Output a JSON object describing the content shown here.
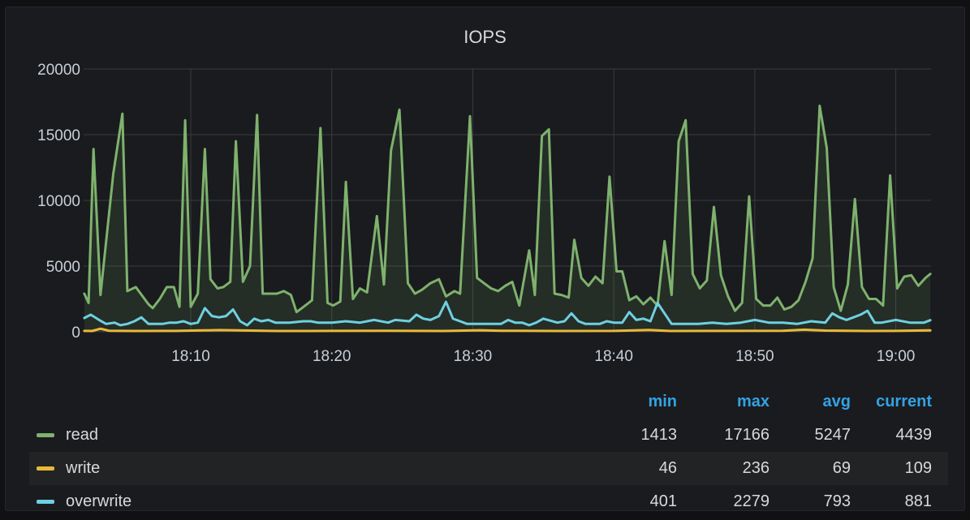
{
  "panel": {
    "title": "IOPS"
  },
  "chart_data": {
    "type": "line",
    "title": "IOPS",
    "xlabel": "",
    "ylabel": "",
    "ylim": [
      0,
      20000
    ],
    "yticks": [
      "0",
      "5000",
      "10000",
      "15000",
      "20000"
    ],
    "xticks": [
      {
        "t": 10,
        "label": "18:10"
      },
      {
        "t": 20,
        "label": "18:20"
      },
      {
        "t": 30,
        "label": "18:30"
      },
      {
        "t": 40,
        "label": "18:40"
      },
      {
        "t": 50,
        "label": "18:50"
      },
      {
        "t": 60,
        "label": "19:00"
      }
    ],
    "xlim": [
      2.4,
      62.5
    ],
    "grid": true,
    "legend_position": "bottom",
    "series": [
      {
        "name": "read",
        "color": "#7eb26d",
        "fill": true,
        "points": [
          [
            2.45,
            2900
          ],
          [
            2.75,
            2200
          ],
          [
            3.1,
            13900
          ],
          [
            3.6,
            2800
          ],
          [
            4.5,
            12000
          ],
          [
            5.15,
            16600
          ],
          [
            5.5,
            3100
          ],
          [
            6.1,
            3400
          ],
          [
            7.0,
            2100
          ],
          [
            7.3,
            1800
          ],
          [
            7.8,
            2500
          ],
          [
            8.3,
            3400
          ],
          [
            8.8,
            3400
          ],
          [
            9.2,
            1900
          ],
          [
            9.6,
            16100
          ],
          [
            10.0,
            1900
          ],
          [
            10.5,
            2900
          ],
          [
            11.0,
            13900
          ],
          [
            11.4,
            4000
          ],
          [
            11.9,
            3300
          ],
          [
            12.3,
            3400
          ],
          [
            12.8,
            3800
          ],
          [
            13.2,
            14500
          ],
          [
            13.7,
            3800
          ],
          [
            14.2,
            5000
          ],
          [
            14.7,
            16500
          ],
          [
            15.1,
            2900
          ],
          [
            15.6,
            2900
          ],
          [
            16.1,
            2900
          ],
          [
            16.6,
            3100
          ],
          [
            17.1,
            2800
          ],
          [
            17.5,
            1500
          ],
          [
            18.0,
            1900
          ],
          [
            18.6,
            2400
          ],
          [
            19.2,
            15500
          ],
          [
            19.7,
            2200
          ],
          [
            20.1,
            2000
          ],
          [
            20.6,
            2300
          ],
          [
            21.0,
            11400
          ],
          [
            21.5,
            2500
          ],
          [
            22.0,
            3300
          ],
          [
            22.5,
            3000
          ],
          [
            23.2,
            8800
          ],
          [
            23.7,
            3600
          ],
          [
            24.2,
            13800
          ],
          [
            24.8,
            16900
          ],
          [
            25.4,
            3700
          ],
          [
            25.9,
            2900
          ],
          [
            26.4,
            3200
          ],
          [
            27.0,
            3700
          ],
          [
            27.6,
            4000
          ],
          [
            28.1,
            2700
          ],
          [
            28.7,
            3100
          ],
          [
            29.1,
            2900
          ],
          [
            29.8,
            16400
          ],
          [
            30.3,
            4100
          ],
          [
            30.8,
            3700
          ],
          [
            31.3,
            3300
          ],
          [
            31.8,
            3100
          ],
          [
            32.3,
            3500
          ],
          [
            32.8,
            3800
          ],
          [
            33.3,
            2000
          ],
          [
            34.0,
            6200
          ],
          [
            34.4,
            2800
          ],
          [
            34.9,
            14900
          ],
          [
            35.4,
            15400
          ],
          [
            35.8,
            2900
          ],
          [
            36.3,
            2800
          ],
          [
            36.8,
            2600
          ],
          [
            37.2,
            7000
          ],
          [
            37.7,
            4100
          ],
          [
            38.2,
            3500
          ],
          [
            38.7,
            4200
          ],
          [
            39.2,
            3700
          ],
          [
            39.7,
            11800
          ],
          [
            40.2,
            4600
          ],
          [
            40.6,
            4600
          ],
          [
            41.1,
            2400
          ],
          [
            41.6,
            2700
          ],
          [
            42.1,
            2100
          ],
          [
            42.6,
            2600
          ],
          [
            43.1,
            2000
          ],
          [
            43.6,
            6900
          ],
          [
            44.1,
            2800
          ],
          [
            44.6,
            14500
          ],
          [
            45.1,
            16100
          ],
          [
            45.6,
            4400
          ],
          [
            46.1,
            3300
          ],
          [
            46.6,
            3900
          ],
          [
            47.1,
            9500
          ],
          [
            47.6,
            4300
          ],
          [
            48.1,
            2700
          ],
          [
            48.6,
            1600
          ],
          [
            49.1,
            2200
          ],
          [
            49.6,
            10300
          ],
          [
            50.1,
            2500
          ],
          [
            50.6,
            2000
          ],
          [
            51.1,
            2000
          ],
          [
            51.6,
            2600
          ],
          [
            52.1,
            1700
          ],
          [
            52.6,
            1900
          ],
          [
            53.1,
            2400
          ],
          [
            53.6,
            3800
          ],
          [
            54.1,
            5600
          ],
          [
            54.6,
            17200
          ],
          [
            55.1,
            14000
          ],
          [
            55.6,
            3400
          ],
          [
            56.1,
            1600
          ],
          [
            56.6,
            3600
          ],
          [
            57.1,
            10100
          ],
          [
            57.6,
            3400
          ],
          [
            58.1,
            2500
          ],
          [
            58.6,
            2500
          ],
          [
            59.1,
            2000
          ],
          [
            59.6,
            11900
          ],
          [
            60.1,
            3300
          ],
          [
            60.6,
            4200
          ],
          [
            61.1,
            4300
          ],
          [
            61.6,
            3500
          ],
          [
            62.1,
            4100
          ],
          [
            62.45,
            4400
          ]
        ]
      },
      {
        "name": "write",
        "color": "#eab839",
        "fill": false,
        "points": [
          [
            2.45,
            70
          ],
          [
            3.0,
            60
          ],
          [
            3.6,
            236
          ],
          [
            4.2,
            80
          ],
          [
            6.0,
            60
          ],
          [
            9.0,
            65
          ],
          [
            12.0,
            130
          ],
          [
            13.5,
            110
          ],
          [
            16.0,
            60
          ],
          [
            20.0,
            70
          ],
          [
            24.0,
            80
          ],
          [
            28.0,
            60
          ],
          [
            30.5,
            120
          ],
          [
            32.0,
            80
          ],
          [
            36.0,
            60
          ],
          [
            40.0,
            70
          ],
          [
            42.5,
            140
          ],
          [
            44.0,
            60
          ],
          [
            48.0,
            70
          ],
          [
            52.0,
            80
          ],
          [
            53.5,
            160
          ],
          [
            55.0,
            90
          ],
          [
            58.0,
            60
          ],
          [
            60.0,
            70
          ],
          [
            62.45,
            109
          ]
        ]
      },
      {
        "name": "overwrite",
        "color": "#6ed0e0",
        "fill": false,
        "points": [
          [
            2.45,
            1050
          ],
          [
            2.9,
            1300
          ],
          [
            3.5,
            900
          ],
          [
            4.0,
            600
          ],
          [
            4.6,
            700
          ],
          [
            5.0,
            500
          ],
          [
            5.5,
            600
          ],
          [
            6.0,
            800
          ],
          [
            6.5,
            1100
          ],
          [
            7.0,
            600
          ],
          [
            8.0,
            600
          ],
          [
            8.5,
            700
          ],
          [
            9.0,
            700
          ],
          [
            9.5,
            800
          ],
          [
            10.0,
            600
          ],
          [
            10.5,
            700
          ],
          [
            11.0,
            1800
          ],
          [
            11.5,
            1200
          ],
          [
            12.0,
            1100
          ],
          [
            12.5,
            1200
          ],
          [
            13.0,
            1700
          ],
          [
            13.5,
            800
          ],
          [
            14.0,
            500
          ],
          [
            14.5,
            1000
          ],
          [
            15.0,
            800
          ],
          [
            15.5,
            900
          ],
          [
            16.0,
            700
          ],
          [
            17.0,
            700
          ],
          [
            18.0,
            800
          ],
          [
            18.5,
            800
          ],
          [
            19.0,
            700
          ],
          [
            20.0,
            700
          ],
          [
            21.0,
            800
          ],
          [
            22.0,
            700
          ],
          [
            23.0,
            900
          ],
          [
            24.0,
            700
          ],
          [
            24.5,
            900
          ],
          [
            25.5,
            800
          ],
          [
            26.0,
            1300
          ],
          [
            26.5,
            1000
          ],
          [
            27.0,
            900
          ],
          [
            27.6,
            1200
          ],
          [
            28.1,
            2279
          ],
          [
            28.6,
            1000
          ],
          [
            29.1,
            800
          ],
          [
            29.6,
            600
          ],
          [
            30.1,
            600
          ],
          [
            31.0,
            600
          ],
          [
            32.0,
            600
          ],
          [
            32.5,
            900
          ],
          [
            33.0,
            700
          ],
          [
            33.5,
            700
          ],
          [
            34.0,
            500
          ],
          [
            34.5,
            700
          ],
          [
            35.0,
            1000
          ],
          [
            36.0,
            700
          ],
          [
            36.5,
            800
          ],
          [
            37.0,
            1400
          ],
          [
            37.5,
            800
          ],
          [
            38.0,
            600
          ],
          [
            39.0,
            600
          ],
          [
            39.5,
            800
          ],
          [
            40.0,
            700
          ],
          [
            40.6,
            700
          ],
          [
            41.1,
            1500
          ],
          [
            41.6,
            900
          ],
          [
            42.1,
            1000
          ],
          [
            42.6,
            800
          ],
          [
            43.1,
            2200
          ],
          [
            43.6,
            1400
          ],
          [
            44.1,
            600
          ],
          [
            45.0,
            600
          ],
          [
            46.0,
            600
          ],
          [
            47.0,
            700
          ],
          [
            48.0,
            600
          ],
          [
            49.0,
            700
          ],
          [
            50.0,
            900
          ],
          [
            51.0,
            700
          ],
          [
            52.0,
            700
          ],
          [
            53.0,
            600
          ],
          [
            54.0,
            800
          ],
          [
            55.0,
            700
          ],
          [
            55.5,
            1400
          ],
          [
            56.0,
            1100
          ],
          [
            56.5,
            900
          ],
          [
            57.0,
            1100
          ],
          [
            57.5,
            1300
          ],
          [
            58.0,
            1600
          ],
          [
            58.5,
            700
          ],
          [
            59.0,
            700
          ],
          [
            60.0,
            900
          ],
          [
            61.0,
            700
          ],
          [
            62.0,
            700
          ],
          [
            62.45,
            881
          ]
        ]
      }
    ]
  },
  "legend": {
    "headers": {
      "min": "min",
      "max": "max",
      "avg": "avg",
      "current": "current"
    },
    "rows": [
      {
        "name": "read",
        "color": "#7eb26d",
        "min": "1413",
        "max": "17166",
        "avg": "5247",
        "current": "4439"
      },
      {
        "name": "write",
        "color": "#eab839",
        "min": "46",
        "max": "236",
        "avg": "69",
        "current": "109"
      },
      {
        "name": "overwrite",
        "color": "#6ed0e0",
        "min": "401",
        "max": "2279",
        "avg": "793",
        "current": "881"
      }
    ]
  }
}
